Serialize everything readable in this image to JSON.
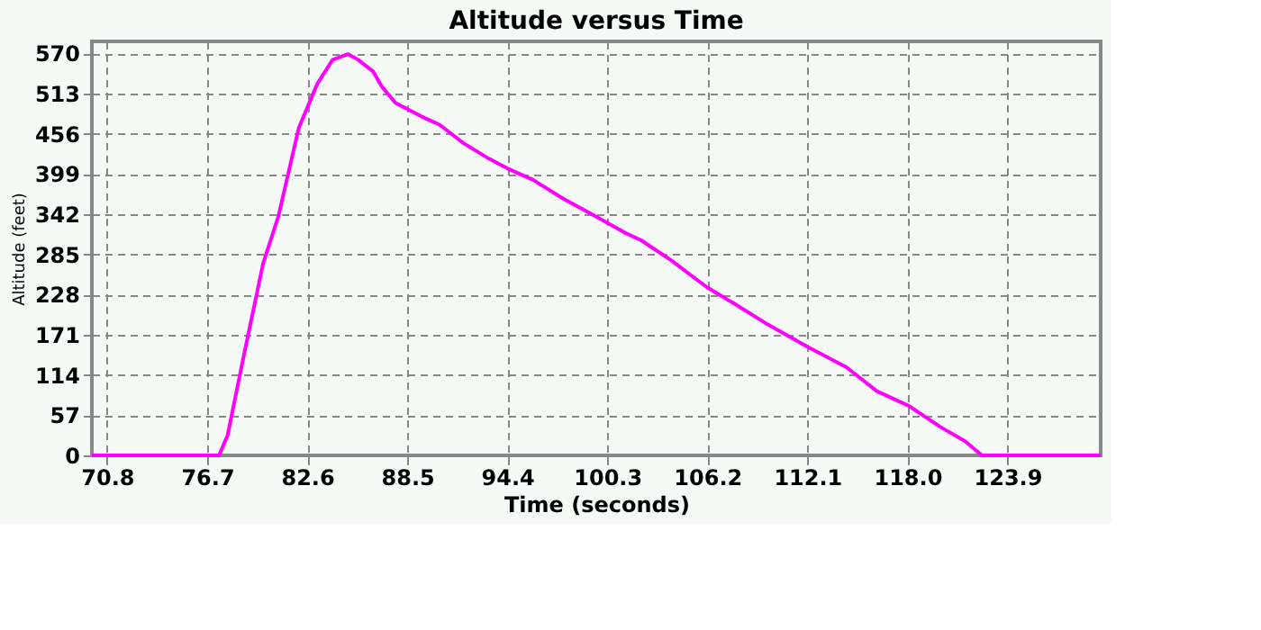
{
  "chart_data": {
    "type": "line",
    "title": "Altitude versus Time",
    "xlabel": "Time (seconds)",
    "ylabel": "Altitude (feet)",
    "xlim": [
      69.9,
      129.4
    ],
    "xticks": [
      70.8,
      76.7,
      82.6,
      88.5,
      94.4,
      100.3,
      106.2,
      112.1,
      {
        "value": 118,
        "label": "118.0"
      },
      123.9
    ],
    "ylim": [
      0,
      587
    ],
    "yticks": [
      0,
      57,
      114,
      171,
      228,
      285,
      342,
      399,
      456,
      513,
      570
    ],
    "grid": true,
    "line_style": "solid",
    "marker": "none",
    "series": [
      {
        "color": "#ff00ff",
        "x": [
          69.9,
          77.4,
          77.9,
          78.9,
          80.0,
          80.9,
          82.1,
          83.2,
          84.1,
          85.0,
          85.6,
          86.5,
          87.0,
          87.8,
          89.3,
          90.4,
          91.8,
          93.3,
          94.4,
          95.9,
          97.7,
          99.6,
          101.4,
          102.3,
          104.1,
          106.2,
          107.8,
          109.6,
          112.1,
          114.4,
          116.2,
          118.1,
          119.9,
          121.4,
          122.4,
          129.4
        ],
        "values": [
          0,
          0,
          28,
          146,
          272,
          339,
          464,
          527,
          561,
          569,
          561,
          544,
          523,
          500,
          481,
          469,
          443,
          421,
          407,
          391,
          364,
          339,
          315,
          305,
          276,
          238,
          215,
          188,
          154,
          125,
          91,
          70,
          41,
          20,
          0,
          0
        ]
      }
    ]
  }
}
